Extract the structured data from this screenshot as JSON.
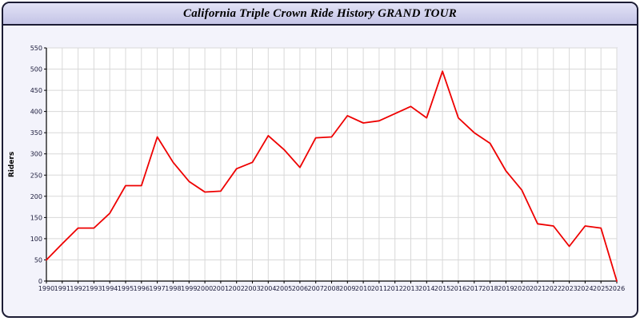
{
  "title_bar": {
    "text": "California Triple Crown Ride History GRAND TOUR"
  },
  "colors": {
    "line": "#ee0000",
    "titlebar_fill": "#cdcdec",
    "window_border": "#1c1c34",
    "grid": "#d8d8d8",
    "tick_label": "#1a1a3a"
  },
  "chart_data": {
    "type": "line",
    "title": "California Triple Crown Ride History GRAND TOUR",
    "xlabel": "",
    "ylabel": "Riders",
    "ylim": [
      0,
      550
    ],
    "ytick_step": 50,
    "grid": true,
    "legend_position": "none",
    "line_color": "#ee0000",
    "x": [
      1990,
      1991,
      1992,
      1993,
      1994,
      1995,
      1996,
      1997,
      1998,
      1999,
      2000,
      2001,
      2002,
      2003,
      2004,
      2005,
      2006,
      2007,
      2008,
      2009,
      2010,
      2011,
      2012,
      2013,
      2014,
      2015,
      2016,
      2017,
      2018,
      2019,
      2020,
      2021,
      2022,
      2023,
      2024,
      2025,
      2026
    ],
    "values": [
      50,
      88,
      125,
      125,
      160,
      225,
      225,
      340,
      280,
      235,
      210,
      212,
      265,
      280,
      343,
      310,
      268,
      338,
      340,
      390,
      373,
      378,
      395,
      412,
      385,
      495,
      385,
      350,
      325,
      260,
      215,
      135,
      130,
      82,
      130,
      125,
      0
    ]
  }
}
